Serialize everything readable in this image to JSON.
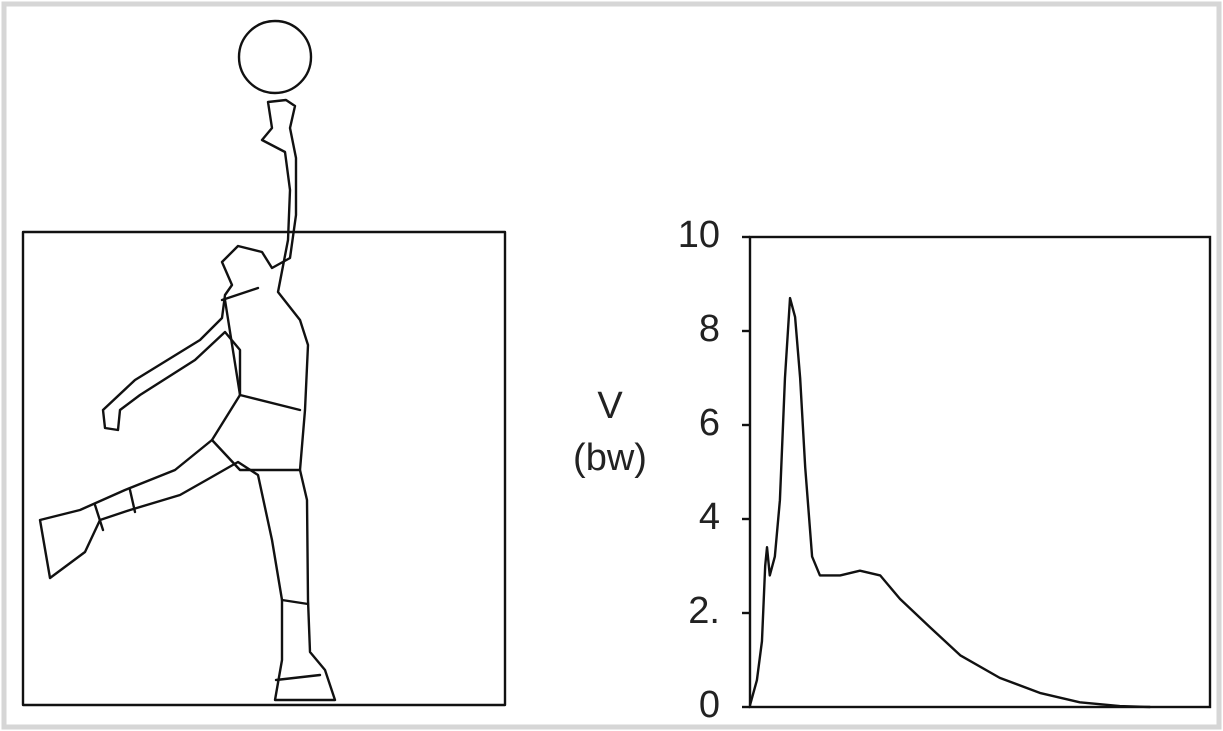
{
  "chart_data": {
    "type": "line",
    "ylabel": [
      "V",
      "(bw)"
    ],
    "x": [
      0,
      0.015,
      0.026,
      0.033,
      0.037,
      0.043,
      0.054,
      0.065,
      0.076,
      0.087,
      0.098,
      0.109,
      0.12,
      0.135,
      0.152,
      0.196,
      0.239,
      0.283,
      0.326,
      0.391,
      0.457,
      0.543,
      0.63,
      0.717,
      0.804,
      0.87
    ],
    "values": [
      0.04,
      0.57,
      1.4,
      3.0,
      3.4,
      2.8,
      3.2,
      4.4,
      7.0,
      8.7,
      8.3,
      7.0,
      5.1,
      3.2,
      2.8,
      2.8,
      2.9,
      2.8,
      2.3,
      1.7,
      1.1,
      0.62,
      0.3,
      0.1,
      0.02,
      0
    ],
    "color": "#111111",
    "xlim": [
      0,
      1
    ],
    "ylim": [
      0,
      10
    ],
    "yticks": [
      0,
      {
        "value": 2,
        "label": "2."
      },
      4,
      6,
      8,
      10
    ]
  }
}
